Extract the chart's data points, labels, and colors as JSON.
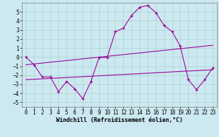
{
  "xlabel": "Windchill (Refroidissement éolien,°C)",
  "background_color": "#cce8f0",
  "line_color": "#990099",
  "xlim": [
    -0.5,
    23.5
  ],
  "ylim": [
    -5.5,
    6.0
  ],
  "xticks": [
    0,
    1,
    2,
    3,
    4,
    5,
    6,
    7,
    8,
    9,
    10,
    11,
    12,
    13,
    14,
    15,
    16,
    17,
    18,
    19,
    20,
    21,
    22,
    23
  ],
  "yticks": [
    -5,
    -4,
    -3,
    -2,
    -1,
    0,
    1,
    2,
    3,
    4,
    5
  ],
  "grid_color": "#aad4cc",
  "series1_x": [
    0,
    1,
    2,
    3,
    4,
    5,
    6,
    7,
    8,
    9,
    10,
    11,
    12,
    13,
    14,
    15,
    16,
    17,
    18,
    19,
    20,
    21,
    22,
    23
  ],
  "series1_y": [
    0.0,
    -0.85,
    -2.2,
    -2.2,
    -3.8,
    -2.7,
    -3.5,
    -4.6,
    -2.7,
    -0.05,
    -0.05,
    2.8,
    3.2,
    4.6,
    5.5,
    5.7,
    4.9,
    3.5,
    2.8,
    1.2,
    -2.5,
    -3.6,
    -2.5,
    -1.2
  ],
  "series2_x": [
    0,
    23
  ],
  "series2_y": [
    -2.5,
    -1.4
  ],
  "series3_x": [
    0,
    23
  ],
  "series3_y": [
    -0.85,
    1.3
  ],
  "tick_fontsize": 5.5,
  "xlabel_fontsize": 6.0
}
